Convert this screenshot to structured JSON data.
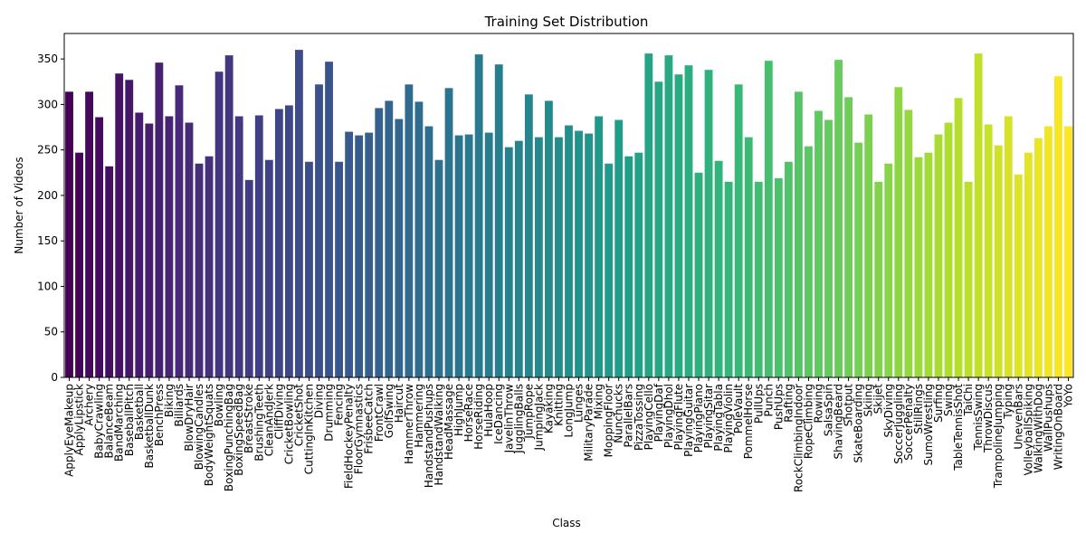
{
  "chart_data": {
    "type": "bar",
    "title": "Training Set Distribution",
    "xlabel": "Class",
    "ylabel": "Number of Videos",
    "ylim": [
      0,
      378
    ],
    "yticks": [
      0,
      50,
      100,
      150,
      200,
      250,
      300,
      350
    ],
    "grid": false,
    "colormap": "viridis",
    "categories": [
      "ApplyEyeMakeup",
      "ApplyLipstick",
      "Archery",
      "BabyCrawling",
      "BalanceBeam",
      "BandMarching",
      "BaseballPitch",
      "Basketball",
      "BasketballDunk",
      "BenchPress",
      "Biking",
      "Billiards",
      "BlowDryHair",
      "BlowingCandles",
      "BodyWeightSquats",
      "Bowling",
      "BoxingPunchingBag",
      "BoxingSpeedBag",
      "BreastStroke",
      "BrushingTeeth",
      "CleanAndJerk",
      "CliffDiving",
      "CricketBowling",
      "CricketShot",
      "CuttingInKitchen",
      "Diving",
      "Drumming",
      "Fencing",
      "FieldHockeyPenalty",
      "FloorGymnastics",
      "FrisbeeCatch",
      "FrontCrawl",
      "GolfSwing",
      "Haircut",
      "HammerThrow",
      "Hammering",
      "HandstandPushups",
      "HandstandWalking",
      "HeadMassage",
      "HighJump",
      "HorseRace",
      "HorseRiding",
      "HulaHoop",
      "IceDancing",
      "JavelinThrow",
      "JugglingBalls",
      "JumpRope",
      "JumpingJack",
      "Kayaking",
      "Knitting",
      "LongJump",
      "Lunges",
      "MilitaryParade",
      "Mixing",
      "MoppingFloor",
      "Nunchucks",
      "ParallelBars",
      "PizzaTossing",
      "PlayingCello",
      "PlayingDaf",
      "PlayingDhol",
      "PlayingFlute",
      "PlayingGuitar",
      "PlayingPiano",
      "PlayingSitar",
      "PlayingTabla",
      "PlayingViolin",
      "PoleVault",
      "PommelHorse",
      "PullUps",
      "Punch",
      "PushUps",
      "Rafting",
      "RockClimbingIndoor",
      "RopeClimbing",
      "Rowing",
      "SalsaSpin",
      "ShavingBeard",
      "Shotput",
      "SkateBoarding",
      "Skiing",
      "Skijet",
      "SkyDiving",
      "SoccerJuggling",
      "SoccerPenalty",
      "StillRings",
      "SumoWrestling",
      "Surfing",
      "Swing",
      "TableTennisShot",
      "TaiChi",
      "TennisSwing",
      "ThrowDiscus",
      "TrampolineJumping",
      "Typing",
      "UnevenBars",
      "VolleyballSpiking",
      "WalkingWithDog",
      "WallPushups",
      "WritingOnBoard",
      "YoYo"
    ],
    "values": [
      314,
      247,
      314,
      286,
      232,
      334,
      327,
      291,
      279,
      346,
      287,
      321,
      280,
      235,
      243,
      336,
      354,
      287,
      217,
      288,
      239,
      295,
      299,
      360,
      237,
      322,
      347,
      237,
      270,
      266,
      269,
      296,
      304,
      284,
      322,
      303,
      276,
      239,
      318,
      266,
      267,
      355,
      269,
      344,
      253,
      260,
      311,
      264,
      304,
      264,
      277,
      271,
      268,
      287,
      235,
      283,
      243,
      247,
      356,
      325,
      354,
      333,
      343,
      225,
      338,
      238,
      215,
      322,
      264,
      215,
      348,
      219,
      237,
      314,
      254,
      293,
      283,
      349,
      308,
      258,
      289,
      215,
      235,
      319,
      294,
      242,
      247,
      267,
      280,
      307,
      215,
      356,
      278,
      255,
      287,
      223,
      247,
      263,
      276,
      331,
      276
    ]
  }
}
